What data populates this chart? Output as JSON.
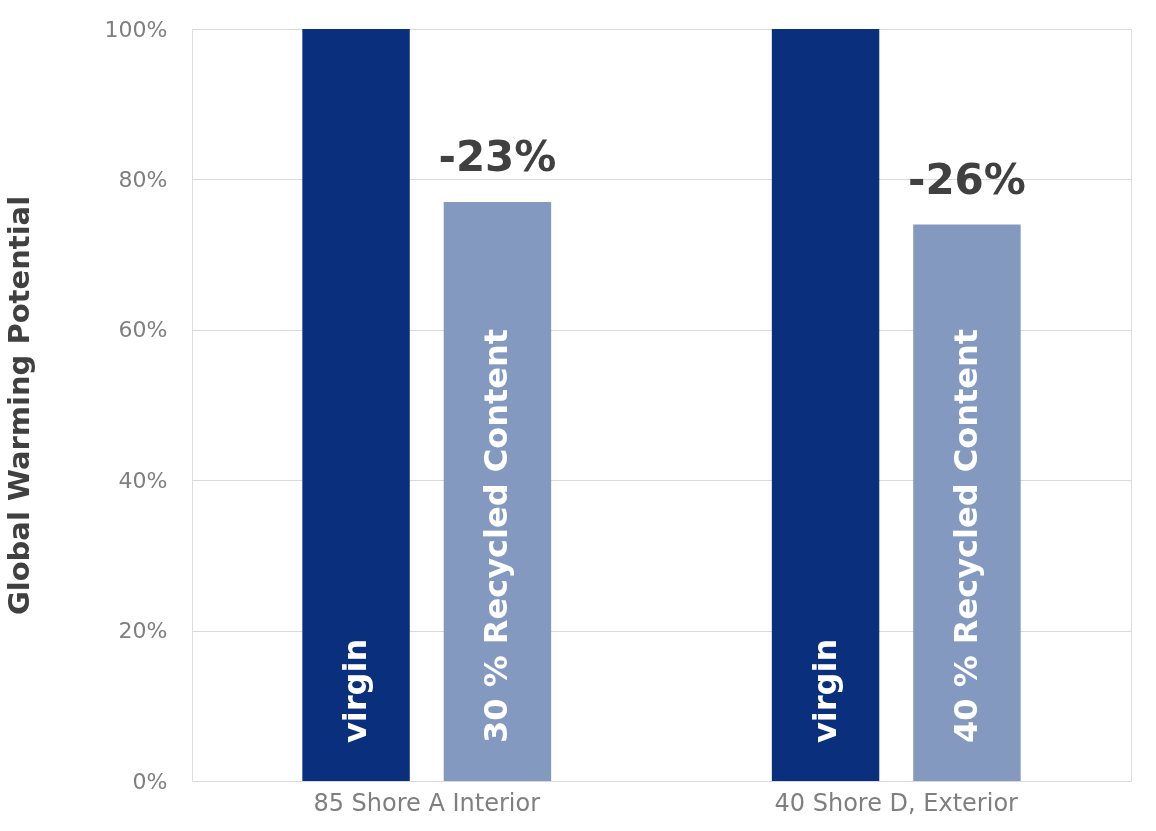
{
  "chart_data": {
    "type": "bar",
    "ylabel": "Global Warming Potential",
    "categories": [
      "85 Shore A Interior",
      "40 Shore D, Exterior"
    ],
    "series": [
      {
        "color": "#0a2f7d",
        "values": [
          100,
          100
        ]
      },
      {
        "color": "#8399c0",
        "values": [
          77,
          74
        ]
      }
    ],
    "ylim": [
      0,
      100
    ],
    "yticks": [
      {
        "value": 0,
        "label": "0%"
      },
      {
        "value": 20,
        "label": "20%"
      },
      {
        "value": 40,
        "label": "40%"
      },
      {
        "value": 60,
        "label": "60%"
      },
      {
        "value": 80,
        "label": "80%"
      },
      {
        "value": 100,
        "label": "100%"
      }
    ],
    "annotations": [
      "virgin",
      "30 % Recycled Content",
      "virgin",
      "40 % Recycled Content",
      "-23%",
      "-26%"
    ],
    "grid": "y",
    "legend": false
  }
}
